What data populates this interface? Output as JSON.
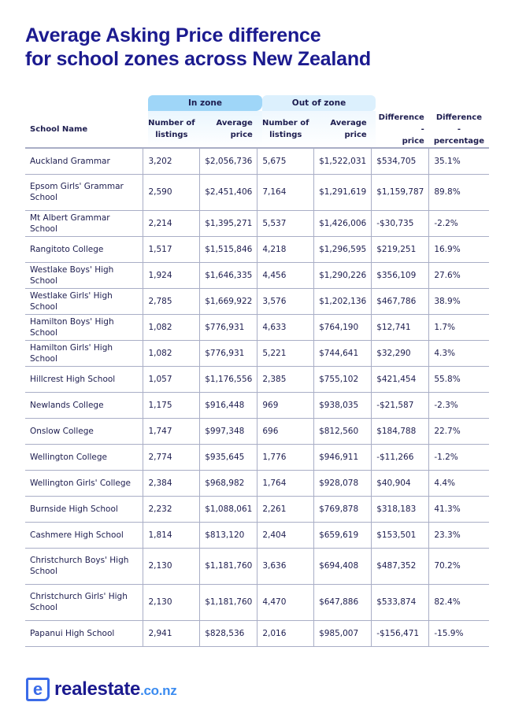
{
  "title_line1": "Average Asking Price difference",
  "title_line2": "for school zones across New Zealand",
  "groups": {
    "in_zone": "In zone",
    "out_zone": "Out of zone"
  },
  "headers": {
    "school": "School Name",
    "in_listings": [
      "Number of",
      "listings"
    ],
    "in_price": [
      "Average",
      "price"
    ],
    "out_listings": [
      "Number of",
      "listings"
    ],
    "out_price": [
      "Average",
      "price"
    ],
    "diff_price": [
      "Difference -",
      "price"
    ],
    "diff_pct": [
      "Difference -",
      "percentage"
    ]
  },
  "rows": [
    [
      "Auckland Grammar",
      "3,202",
      "$2,056,736",
      "5,675",
      "$1,522,031",
      "$534,705",
      "35.1%"
    ],
    [
      "Epsom Girls' Grammar School",
      "2,590",
      "$2,451,406",
      "7,164",
      "$1,291,619",
      "$1,159,787",
      "89.8%"
    ],
    [
      "Mt Albert Grammar School",
      "2,214",
      "$1,395,271",
      "5,537",
      "$1,426,006",
      "-$30,735",
      "-2.2%"
    ],
    [
      "Rangitoto College",
      "1,517",
      "$1,515,846",
      "4,218",
      "$1,296,595",
      "$219,251",
      "16.9%"
    ],
    [
      "Westlake Boys' High School",
      "1,924",
      "$1,646,335",
      "4,456",
      "$1,290,226",
      "$356,109",
      "27.6%"
    ],
    [
      "Westlake Girls' High School",
      "2,785",
      "$1,669,922",
      "3,576",
      "$1,202,136",
      "$467,786",
      "38.9%"
    ],
    [
      "Hamilton Boys' High School",
      "1,082",
      "$776,931",
      "4,633",
      "$764,190",
      "$12,741",
      "1.7%"
    ],
    [
      "Hamilton Girls' High School",
      "1,082",
      "$776,931",
      "5,221",
      "$744,641",
      "$32,290",
      "4.3%"
    ],
    [
      "Hillcrest High School",
      "1,057",
      "$1,176,556",
      "2,385",
      "$755,102",
      "$421,454",
      "55.8%"
    ],
    [
      "Newlands College",
      "1,175",
      "$916,448",
      "969",
      "$938,035",
      "-$21,587",
      "-2.3%"
    ],
    [
      "Onslow College",
      "1,747",
      "$997,348",
      "696",
      "$812,560",
      "$184,788",
      "22.7%"
    ],
    [
      "Wellington College",
      "2,774",
      "$935,645",
      "1,776",
      "$946,911",
      "-$11,266",
      "-1.2%"
    ],
    [
      "Wellington Girls' College",
      "2,384",
      "$968,982",
      "1,764",
      "$928,078",
      "$40,904",
      "4.4%"
    ],
    [
      "Burnside High School",
      "2,232",
      "$1,088,061",
      "2,261",
      "$769,878",
      "$318,183",
      "41.3%"
    ],
    [
      "Cashmere High School",
      "1,814",
      "$813,120",
      "2,404",
      "$659,619",
      "$153,501",
      "23.3%"
    ],
    [
      "Christchurch Boys' High School",
      "2,130",
      "$1,181,760",
      "3,636",
      "$694,408",
      "$487,352",
      "70.2%"
    ],
    [
      "Christchurch Girls' High School",
      "2,130",
      "$1,181,760",
      "4,470",
      "$647,886",
      "$533,874",
      "82.4%"
    ],
    [
      "Papanui High School",
      "2,941",
      "$828,536",
      "2,016",
      "$985,007",
      "-$156,471",
      "-15.9%"
    ]
  ],
  "logo": {
    "main": "realestate",
    "suffix": ".co.nz",
    "mark": "e"
  },
  "colors": {
    "title": "#1b1a8f",
    "in_zone": "#9fd6f8",
    "out_zone": "#dcf0fd",
    "logo_blue": "#3a6be8"
  }
}
